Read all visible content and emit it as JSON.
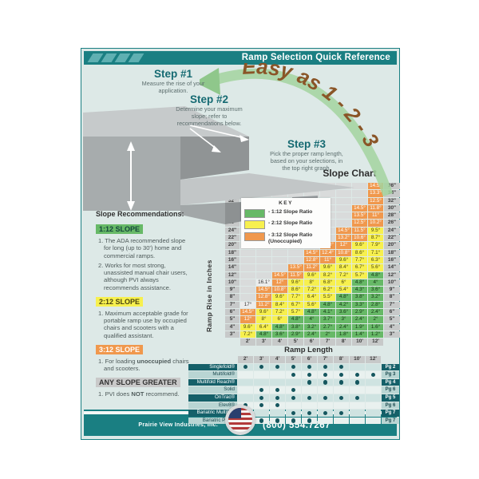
{
  "header": {
    "title": "Ramp Selection Quick Reference"
  },
  "hero": {
    "easy_text": "Easy as 1 - 2 - 3"
  },
  "steps": [
    {
      "label": "Step #1",
      "desc": "Measure the rise of your application."
    },
    {
      "label": "Step #2",
      "desc": "Determine your maximum slope; refer to recommendations below."
    },
    {
      "label": "Step #3",
      "desc": "Pick the proper ramp length, based on your selections, in the top right graph."
    }
  ],
  "chart_data": {
    "type": "heatmap",
    "title": "Slope Chart",
    "xlabel": "Ramp Length",
    "ylabel": "Ramp Rise in Inches",
    "unit": "degrees",
    "x_labels": [
      "2'",
      "3'",
      "4'",
      "5'",
      "6'",
      "7'",
      "8'",
      "10'",
      "12'"
    ],
    "legend_title": "KEY",
    "legend": [
      {
        "label": "1:12 Slope Ratio",
        "color": "#67b967"
      },
      {
        "label": "2:12 Slope Ratio",
        "color": "#f7f04e"
      },
      {
        "label": "3:12 Slope Ratio (Unoccupied)",
        "color": "#f0984d"
      }
    ],
    "color_rule": {
      "green_max_deg": 4.8,
      "yellow_max_deg": 9.6,
      "orange_max_deg": 14.5
    },
    "rows": [
      {
        "rise": 36,
        "values": [
          null,
          null,
          null,
          null,
          null,
          null,
          null,
          null,
          14.5
        ]
      },
      {
        "rise": 34,
        "values": [
          null,
          null,
          null,
          null,
          null,
          null,
          null,
          null,
          13.3
        ]
      },
      {
        "rise": 32,
        "values": [
          null,
          null,
          null,
          null,
          null,
          null,
          null,
          null,
          12.5
        ]
      },
      {
        "rise": 30,
        "values": [
          null,
          null,
          null,
          null,
          null,
          null,
          null,
          14.5,
          11.8
        ]
      },
      {
        "rise": 28,
        "values": [
          null,
          null,
          null,
          null,
          null,
          null,
          null,
          13.5,
          11
        ]
      },
      {
        "rise": 26,
        "values": [
          null,
          null,
          null,
          null,
          null,
          null,
          null,
          12.5,
          10.2
        ]
      },
      {
        "rise": 24,
        "values": [
          null,
          null,
          null,
          null,
          null,
          null,
          14.5,
          11.5,
          9.5
        ]
      },
      {
        "rise": 22,
        "values": [
          null,
          null,
          null,
          null,
          null,
          null,
          13.2,
          10.6,
          8.7
        ]
      },
      {
        "rise": 20,
        "values": [
          null,
          null,
          null,
          null,
          null,
          13.8,
          12,
          9.6,
          7.9
        ]
      },
      {
        "rise": 18,
        "values": [
          null,
          null,
          null,
          null,
          14.5,
          12.4,
          10.8,
          8.6,
          7.1
        ]
      },
      {
        "rise": 16,
        "values": [
          null,
          null,
          null,
          null,
          12.8,
          11,
          9.6,
          7.7,
          6.3
        ]
      },
      {
        "rise": 14,
        "values": [
          null,
          null,
          null,
          13.5,
          11.2,
          9.6,
          8.4,
          6.7,
          5.6
        ]
      },
      {
        "rise": 12,
        "values": [
          null,
          null,
          14.5,
          11.5,
          9.6,
          8.2,
          7.2,
          5.7,
          4.8
        ]
      },
      {
        "rise": 10,
        "values": [
          null,
          16.1,
          12,
          9.6,
          8,
          6.8,
          6,
          4.8,
          4
        ]
      },
      {
        "rise": 9,
        "values": [
          null,
          14.5,
          10.8,
          8.6,
          7.2,
          6.2,
          5.4,
          4.3,
          3.6
        ]
      },
      {
        "rise": 8,
        "values": [
          null,
          12.8,
          9.6,
          7.7,
          6.4,
          5.5,
          4.8,
          3.8,
          3.2
        ]
      },
      {
        "rise": 7,
        "values": [
          17,
          11.2,
          8.4,
          6.7,
          5.6,
          4.8,
          4.2,
          3.3,
          2.8
        ]
      },
      {
        "rise": 6,
        "values": [
          14.5,
          9.6,
          7.2,
          5.7,
          4.8,
          4.1,
          3.6,
          2.9,
          2.4
        ]
      },
      {
        "rise": 5,
        "values": [
          12,
          8,
          6,
          4.8,
          4,
          3.7,
          3,
          2.4,
          2
        ]
      },
      {
        "rise": 4,
        "values": [
          9.6,
          6.4,
          4.8,
          3.8,
          3.2,
          2.7,
          2.4,
          1.9,
          1.6
        ]
      },
      {
        "rise": 3,
        "values": [
          7.2,
          4.8,
          3.6,
          2.9,
          2.4,
          2,
          1.8,
          1.4,
          1.2
        ]
      }
    ]
  },
  "recommendations": {
    "heading": "Slope Recommendations:",
    "bold_words": [
      "unoccupied",
      "NOT"
    ],
    "sections": [
      {
        "badge": "1:12 SLOPE",
        "badge_color": "#67b967",
        "badge_text_color": "#14463c",
        "items": [
          "The ADA recommended slope for long (up to 30') home and commercial ramps.",
          "Works for most strong, unassisted manual chair users, although PVI always recommends assistance."
        ]
      },
      {
        "badge": "2:12 SLOPE",
        "badge_color": "#f7f04e",
        "badge_text_color": "#4a4510",
        "items": [
          "Maximum acceptable grade for portable ramp use by occupied chairs and scooters with a qualified assistant."
        ]
      },
      {
        "badge": "3:12 SLOPE",
        "badge_color": "#f0984d",
        "badge_text_color": "#ffffff",
        "items": [
          "For loading unoccupied chairs and scooters."
        ]
      },
      {
        "badge": "ANY SLOPE GREATER",
        "badge_color": "#c9c9c9",
        "badge_text_color": "#343434",
        "items": [
          "PVI does NOT recommend."
        ]
      }
    ]
  },
  "ramp_length_table": {
    "title": "Ramp Length",
    "columns": [
      "2'",
      "3'",
      "4'",
      "5'",
      "6'",
      "7'",
      "8'",
      "10'",
      "12'"
    ],
    "products": [
      {
        "name": "Singlefold®",
        "page": "Pg 2",
        "lengths": [
          1,
          1,
          1,
          1,
          1,
          1,
          1,
          0,
          0
        ]
      },
      {
        "name": "Multifold®",
        "page": "Pg 3",
        "lengths": [
          0,
          0,
          0,
          1,
          1,
          1,
          1,
          1,
          1
        ]
      },
      {
        "name": "Multifold Reach®",
        "page": "Pg 4",
        "lengths": [
          0,
          0,
          0,
          0,
          1,
          1,
          1,
          1,
          0
        ]
      },
      {
        "name": "Solid",
        "page": "Pg 6",
        "lengths": [
          0,
          1,
          1,
          1,
          0,
          0,
          0,
          0,
          0
        ]
      },
      {
        "name": "OnTrac®",
        "page": "Pg 5",
        "lengths": [
          0,
          1,
          1,
          1,
          1,
          1,
          1,
          1,
          0
        ]
      },
      {
        "name": "Elev8®",
        "page": "Pg 6",
        "lengths": [
          1,
          1,
          1,
          0,
          0,
          0,
          0,
          0,
          0
        ]
      },
      {
        "name": "Bariatric Multifold",
        "page": "Pg 7",
        "lengths": [
          0,
          0,
          0,
          1,
          1,
          1,
          1,
          0,
          0
        ]
      },
      {
        "name": "Bariatric Panel",
        "page": "Pg 7",
        "lengths": [
          0,
          1,
          1,
          1,
          1,
          0,
          0,
          0,
          0
        ]
      }
    ]
  },
  "footer": {
    "company": "Prairie View Industries, Inc.",
    "phone": "(800) 554.7267"
  },
  "colors": {
    "teal": "#1a7f82",
    "background": "#dde9e7",
    "dot": "#15565e",
    "easy_text_brown": "#8a5527",
    "easy_arrow_green": "#a3d49f"
  }
}
